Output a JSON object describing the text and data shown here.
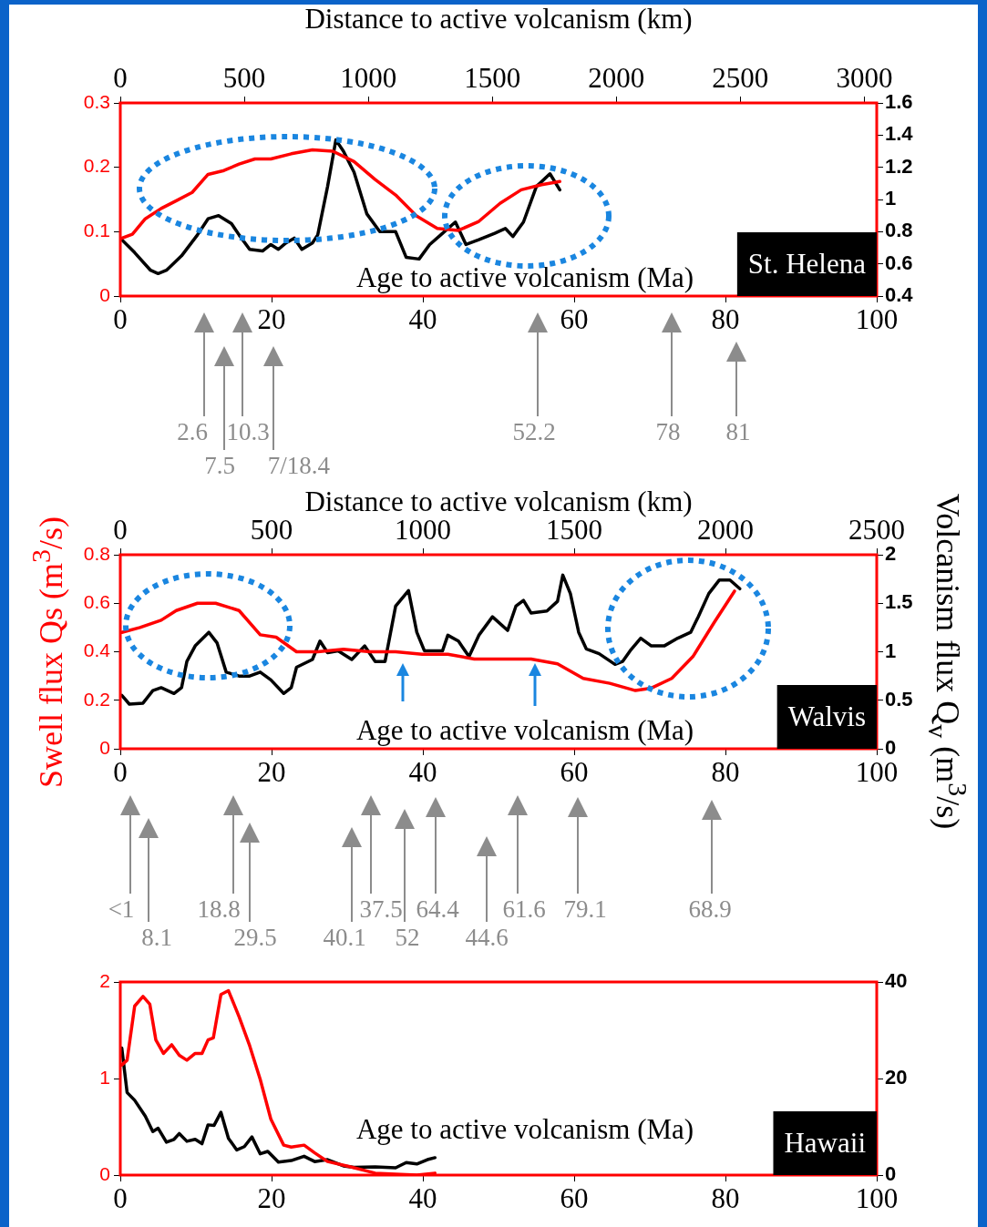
{
  "chart_data": [
    {
      "type": "line",
      "xlim": [
        0,
        100
      ],
      "xticks": [
        0,
        20,
        40,
        60,
        80,
        100
      ],
      "ylim": [
        0,
        0.3
      ],
      "yticks": [
        0,
        0.1,
        0.2,
        0.3
      ],
      "y2lim": [
        0.4,
        1.6
      ],
      "y2ticks": [
        0.4,
        0.6,
        0.8,
        1,
        1.2,
        1.4,
        1.6
      ],
      "x2lim": [
        0,
        3050
      ],
      "x2ticks": [
        0,
        500,
        1000,
        1500,
        2000,
        2500,
        3000
      ],
      "x2label": "Distance to active volcanism (km)",
      "xlabel": "Age to active volcanism (Ma)",
      "series": [
        {
          "color": "#ff0000",
          "axis": "y",
          "x": [
            0,
            1.6,
            3.3,
            5.4,
            7.4,
            9.5,
            11.6,
            13.7,
            15.7,
            17.8,
            19.9,
            22.6,
            25.4,
            28.1,
            30.9,
            33.7,
            36.4,
            39.2,
            41.9,
            44.7,
            47.4,
            50.2,
            53,
            55.7,
            58.1
          ],
          "values": [
            0.089,
            0.096,
            0.12,
            0.136,
            0.148,
            0.161,
            0.189,
            0.195,
            0.205,
            0.213,
            0.213,
            0.221,
            0.227,
            0.225,
            0.209,
            0.181,
            0.157,
            0.124,
            0.105,
            0.102,
            0.116,
            0.144,
            0.165,
            0.173,
            0.178
          ]
        },
        {
          "color": "#000000",
          "axis": "y2",
          "x": [
            0,
            1.9,
            4,
            5,
            6.1,
            8.1,
            10.2,
            11.6,
            13,
            14.7,
            15.7,
            17.1,
            18.8,
            19.9,
            20.9,
            21.9,
            23,
            24,
            25.4,
            26.1,
            27.4,
            28.5,
            29.5,
            30.9,
            32.6,
            34.3,
            36.4,
            37.8,
            39.5,
            40.9,
            42.6,
            44.3,
            45.7,
            47.4,
            49.5,
            50.9,
            51.9,
            53.3,
            55,
            56.8,
            58.1
          ],
          "values": [
            0.76,
            0.67,
            0.56,
            0.54,
            0.56,
            0.65,
            0.78,
            0.88,
            0.9,
            0.85,
            0.78,
            0.69,
            0.68,
            0.72,
            0.69,
            0.73,
            0.76,
            0.69,
            0.73,
            0.78,
            1.08,
            1.37,
            1.3,
            1.17,
            0.91,
            0.8,
            0.8,
            0.64,
            0.63,
            0.72,
            0.79,
            0.86,
            0.72,
            0.75,
            0.79,
            0.82,
            0.77,
            0.86,
            1.08,
            1.16,
            1.06
          ]
        }
      ],
      "annotations": [
        "St. Helena",
        "2.6",
        "7.5",
        "10.3",
        "7/18.4",
        "52.2",
        "78",
        "81"
      ]
    },
    {
      "type": "line",
      "xlim": [
        0,
        100
      ],
      "xticks": [
        0,
        20,
        40,
        60,
        80,
        100
      ],
      "ylim": [
        0,
        0.8
      ],
      "yticks": [
        0,
        0.2,
        0.4,
        0.6,
        0.8
      ],
      "y2lim": [
        0,
        2
      ],
      "y2ticks": [
        0,
        0.5,
        1,
        1.5,
        2
      ],
      "x2lim": [
        0,
        2500
      ],
      "x2ticks": [
        0,
        500,
        1000,
        1500,
        2000,
        2500
      ],
      "x2label": "Distance to active volcanism (km)",
      "xlabel": "Age to active volcanism (Ma)",
      "ylabel": "Swell flux Qs (m$^{3}$/s)",
      "y2label": "Volcanism flux Q$_{v}$ (m$^{3}$/s)",
      "series": [
        {
          "color": "#ff0000",
          "axis": "y",
          "x": [
            0.2,
            2.6,
            5.4,
            7.4,
            10.2,
            12.6,
            15.7,
            18.5,
            20.6,
            23.3,
            26.1,
            29.5,
            33,
            36.4,
            39.9,
            43.3,
            46.8,
            50.2,
            54.3,
            57.8,
            61.2,
            64.7,
            68.1,
            70.2,
            72.9,
            75.7,
            78.5,
            81.2
          ],
          "values": [
            0.48,
            0.5,
            0.53,
            0.57,
            0.6,
            0.6,
            0.57,
            0.47,
            0.46,
            0.4,
            0.4,
            0.41,
            0.4,
            0.4,
            0.39,
            0.39,
            0.37,
            0.37,
            0.37,
            0.35,
            0.29,
            0.27,
            0.24,
            0.25,
            0.29,
            0.38,
            0.52,
            0.65
          ]
        },
        {
          "color": "#000000",
          "axis": "y2",
          "x": [
            0.2,
            1.2,
            3,
            4.3,
            5.4,
            7.1,
            8.1,
            8.8,
            9.9,
            11.7,
            12.8,
            14,
            15.7,
            17.1,
            18.5,
            19.9,
            21.6,
            22.6,
            23.3,
            25.4,
            26.4,
            27.4,
            28.8,
            30.6,
            32.3,
            33.7,
            35,
            36.4,
            38.1,
            39.2,
            40.2,
            42.6,
            43.3,
            44.7,
            46.1,
            47.4,
            49.2,
            51.2,
            52.3,
            53.3,
            54.3,
            56.4,
            57.8,
            58.5,
            59.5,
            60.6,
            61.6,
            63.3,
            65.4,
            66.4,
            67.4,
            68.8,
            70.2,
            71.9,
            73.7,
            75.4,
            76.4,
            77.8,
            79.2,
            80.6,
            81.9
          ],
          "values": [
            0.55,
            0.46,
            0.47,
            0.6,
            0.63,
            0.57,
            0.63,
            0.9,
            1.06,
            1.2,
            1.09,
            0.79,
            0.75,
            0.75,
            0.79,
            0.71,
            0.57,
            0.63,
            0.84,
            0.92,
            1.11,
            0.99,
            1.01,
            0.92,
            1.06,
            0.9,
            0.9,
            1.47,
            1.63,
            1.2,
            1.01,
            1.01,
            1.17,
            1.11,
            0.95,
            1.17,
            1.36,
            1.22,
            1.47,
            1.53,
            1.4,
            1.42,
            1.52,
            1.79,
            1.6,
            1.2,
            1.03,
            0.98,
            0.87,
            0.9,
            1.01,
            1.14,
            1.06,
            1.06,
            1.14,
            1.2,
            1.36,
            1.6,
            1.74,
            1.74,
            1.65
          ]
        }
      ],
      "annotations": [
        "Walvis",
        "<1",
        "8.1",
        "18.8",
        "29.5",
        "40.1",
        "37.5",
        "52",
        "64.4",
        "44.6",
        "61.6",
        "79.1",
        "68.9"
      ]
    },
    {
      "type": "line",
      "xlim": [
        0,
        100
      ],
      "xticks": [
        0,
        20,
        40,
        60,
        80,
        100
      ],
      "ylim": [
        0,
        2
      ],
      "yticks": [
        0,
        1,
        2
      ],
      "y2lim": [
        0,
        40
      ],
      "y2ticks": [
        0,
        20,
        40
      ],
      "xlabel": "Age to active volcanism (Ma)",
      "series": [
        {
          "color": "#ff0000",
          "axis": "y",
          "x": [
            0.2,
            0.9,
            1.9,
            3,
            3.9,
            4.7,
            5.7,
            6.8,
            7.8,
            8.8,
            9.9,
            10.8,
            11.6,
            12.3,
            13.3,
            14.3,
            15.7,
            17.1,
            18.5,
            19.9,
            21.6,
            22.6,
            24.3,
            25.7,
            27.4,
            30.2,
            33.7,
            36.4,
            39.2,
            41.6
          ],
          "values": [
            1.14,
            1.19,
            1.75,
            1.85,
            1.77,
            1.4,
            1.26,
            1.35,
            1.24,
            1.19,
            1.26,
            1.26,
            1.4,
            1.42,
            1.87,
            1.91,
            1.64,
            1.34,
            0.99,
            0.58,
            0.31,
            0.29,
            0.31,
            0.23,
            0.14,
            0.09,
            0.02,
            0.01,
            0,
            0.02
          ]
        },
        {
          "color": "#000000",
          "axis": "y2",
          "x": [
            0.2,
            0.9,
            1.9,
            3.3,
            4.3,
            5,
            6.1,
            7.1,
            7.8,
            8.8,
            9.9,
            10.8,
            11.6,
            12.4,
            13.3,
            14.3,
            15.4,
            16.4,
            17.4,
            18.5,
            19.5,
            20.9,
            22.6,
            24.3,
            25.7,
            27.4,
            29.5,
            30.9,
            33.7,
            36.4,
            37.8,
            39.2,
            40.6,
            41.6
          ],
          "values": [
            26.3,
            17.1,
            15.5,
            12.2,
            9,
            9.7,
            6.8,
            7.4,
            8.6,
            7,
            7.4,
            6.5,
            10.4,
            10.3,
            13,
            7.6,
            5.2,
            5.9,
            7.9,
            4.4,
            4.9,
            2.7,
            3,
            3.9,
            2.8,
            3.2,
            1.9,
            1.6,
            1.7,
            1.5,
            2.6,
            2.3,
            3.2,
            3.6
          ]
        }
      ],
      "annotations": [
        "Hawaii"
      ]
    }
  ]
}
